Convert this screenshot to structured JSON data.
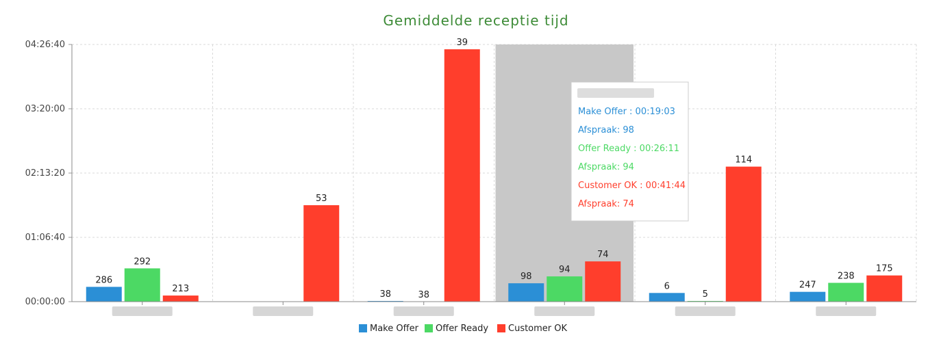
{
  "colors": {
    "title": "#3d8b37",
    "make_offer": "#2b8fd6",
    "offer_ready": "#4cd964",
    "customer_ok": "#ff3e2c",
    "highlight": "#c8c8c8",
    "grid": "#d9d9d9"
  },
  "chart_data": {
    "type": "bar",
    "title": "Gemiddelde receptie tijd",
    "xlabel": "",
    "ylabel": "",
    "y_unit": "hh:mm:ss",
    "yticks": [
      "00:00:00",
      "01:06:40",
      "02:13:20",
      "03:20:00",
      "04:26:40"
    ],
    "ylim_seconds": [
      0,
      16000
    ],
    "grid": true,
    "legend_position": "bottom",
    "categories": [
      "",
      "",
      "",
      "",
      "",
      ""
    ],
    "highlighted_category_index": 3,
    "series": [
      {
        "name": "Make Offer",
        "color_key": "make_offer",
        "values_seconds": [
          920,
          0,
          30,
          1143,
          540,
          610
        ],
        "labels": [
          "286",
          "",
          "38",
          "98",
          "6",
          "247"
        ]
      },
      {
        "name": "Offer Ready",
        "color_key": "offer_ready",
        "values_seconds": [
          2070,
          0,
          0,
          1571,
          40,
          1170
        ],
        "labels": [
          "292",
          "",
          "38",
          "94",
          "5",
          "238"
        ]
      },
      {
        "name": "Customer OK",
        "color_key": "customer_ok",
        "values_seconds": [
          380,
          6000,
          15700,
          2504,
          8400,
          1630
        ],
        "labels": [
          "213",
          "53",
          "39",
          "74",
          "114",
          "175"
        ]
      }
    ],
    "tooltip": {
      "lines": [
        {
          "text": "Make Offer : 00:19:03",
          "color_key": "make_offer"
        },
        {
          "text": "Afspraak: 98",
          "color_key": "make_offer"
        },
        {
          "text": "Offer Ready : 00:26:11",
          "color_key": "offer_ready"
        },
        {
          "text": "Afspraak: 94",
          "color_key": "offer_ready"
        },
        {
          "text": "Customer OK : 00:41:44",
          "color_key": "customer_ok"
        },
        {
          "text": "Afspraak: 74",
          "color_key": "customer_ok"
        }
      ]
    }
  }
}
